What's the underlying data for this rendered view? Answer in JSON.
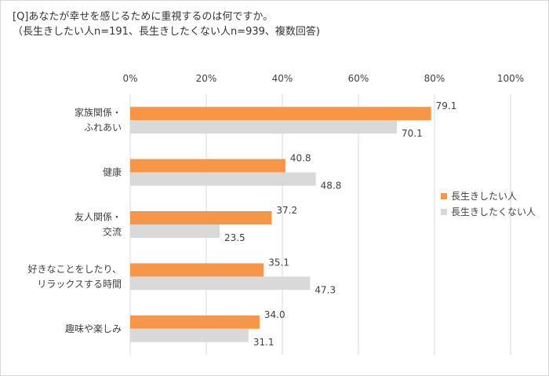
{
  "chart_data": {
    "type": "bar",
    "orientation": "horizontal",
    "title": "[Q]あなたが幸せを感じるために重視するのは何ですか。",
    "subtitle": "（長生きしたい人n=191、長生きしたくない人n=939、複数回答)",
    "categories": [
      [
        "家族関係・",
        "ふれあい"
      ],
      [
        "健康"
      ],
      [
        "友人関係・",
        "交流"
      ],
      [
        "好きなことをしたり、",
        "リラックスする時間"
      ],
      [
        "趣味や楽しみ"
      ]
    ],
    "series": [
      {
        "name": "長生きしたい人",
        "color": "#f79646",
        "values": [
          79.1,
          40.8,
          37.2,
          35.1,
          34.0
        ]
      },
      {
        "name": "長生きしたくない人",
        "color": "#d9d9d9",
        "values": [
          70.1,
          48.8,
          23.5,
          47.3,
          31.1
        ]
      }
    ],
    "xlim": [
      0,
      100
    ],
    "xticks": [
      "0%",
      "20%",
      "40%",
      "60%",
      "80%",
      "100%"
    ],
    "xtick_values": [
      0,
      20,
      40,
      60,
      80,
      100
    ],
    "grid": true,
    "legend_position": "right"
  }
}
